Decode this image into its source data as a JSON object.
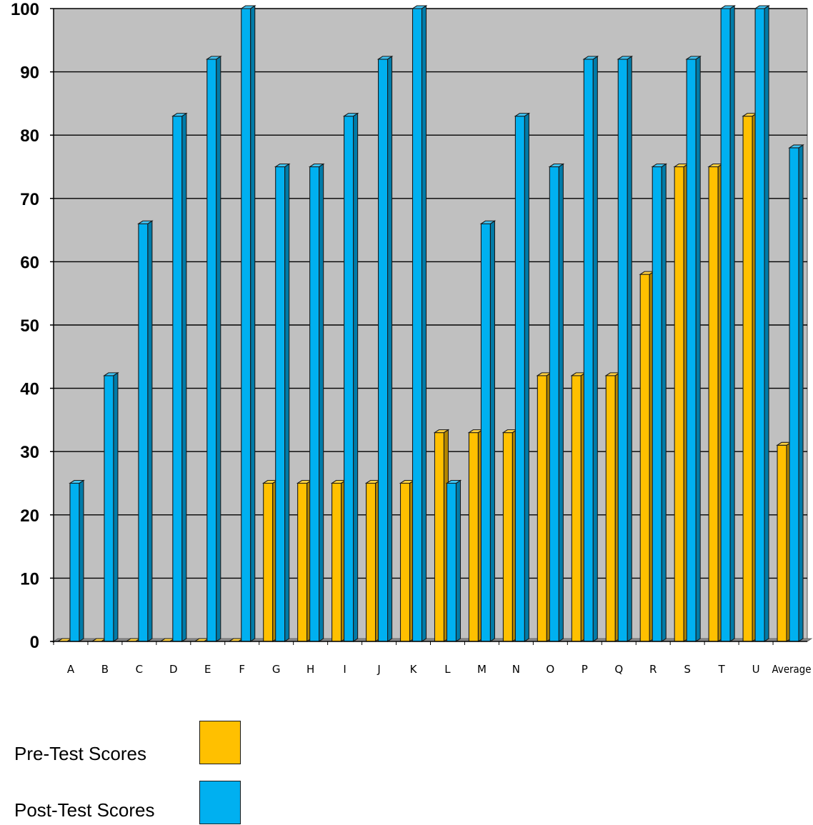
{
  "chart_data": {
    "type": "bar",
    "categories": [
      "A",
      "B",
      "C",
      "D",
      "E",
      "F",
      "G",
      "H",
      "I",
      "J",
      "K",
      "L",
      "M",
      "N",
      "O",
      "P",
      "Q",
      "R",
      "S",
      "T",
      "U",
      "Average"
    ],
    "series": [
      {
        "name": "Pre-Test Scores",
        "color": "#ffc000",
        "values": [
          0,
          0,
          0,
          0,
          0,
          0,
          25,
          25,
          25,
          25,
          25,
          33,
          33,
          33,
          42,
          42,
          42,
          58,
          75,
          75,
          83,
          31
        ]
      },
      {
        "name": "Post-Test Scores",
        "color": "#00b0f0",
        "values": [
          25,
          42,
          66,
          83,
          92,
          100,
          75,
          75,
          83,
          92,
          100,
          25,
          66,
          83,
          75,
          92,
          92,
          75,
          92,
          100,
          100,
          78
        ]
      }
    ],
    "ylim": [
      0,
      100
    ],
    "yticks": [
      "0",
      "10",
      "20",
      "30",
      "40",
      "50",
      "60",
      "70",
      "80",
      "90",
      "100"
    ],
    "grid": true,
    "legend_position": "bottom-left",
    "plot_background": "#c0c0c0"
  },
  "legend": {
    "pre_label": "Pre-Test Scores",
    "post_label": "Post-Test Scores"
  }
}
